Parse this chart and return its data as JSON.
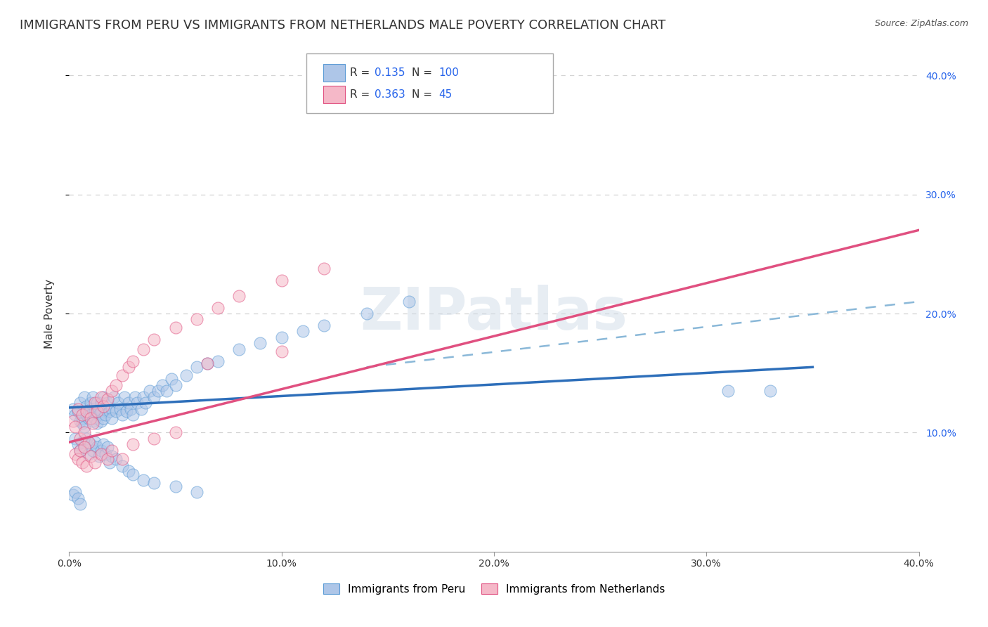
{
  "title": "IMMIGRANTS FROM PERU VS IMMIGRANTS FROM NETHERLANDS MALE POVERTY CORRELATION CHART",
  "source": "Source: ZipAtlas.com",
  "ylabel": "Male Poverty",
  "xlim": [
    0.0,
    0.4
  ],
  "ylim": [
    0.0,
    0.4
  ],
  "xtick_labels": [
    "0.0%",
    "10.0%",
    "20.0%",
    "30.0%",
    "40.0%"
  ],
  "xtick_vals": [
    0.0,
    0.1,
    0.2,
    0.3,
    0.4
  ],
  "ytick_labels_right": [
    "10.0%",
    "20.0%",
    "30.0%",
    "40.0%"
  ],
  "ytick_vals_right": [
    0.1,
    0.2,
    0.3,
    0.4
  ],
  "peru": {
    "name": "Immigrants from Peru",
    "color_fill": "#aec6e8",
    "color_edge": "#5b9bd5",
    "R": "0.135",
    "N": "100",
    "x": [
      0.002,
      0.003,
      0.004,
      0.005,
      0.005,
      0.006,
      0.006,
      0.007,
      0.007,
      0.008,
      0.008,
      0.009,
      0.009,
      0.01,
      0.01,
      0.01,
      0.011,
      0.011,
      0.012,
      0.012,
      0.013,
      0.013,
      0.014,
      0.014,
      0.015,
      0.015,
      0.015,
      0.016,
      0.016,
      0.017,
      0.017,
      0.018,
      0.019,
      0.02,
      0.02,
      0.021,
      0.022,
      0.023,
      0.024,
      0.025,
      0.026,
      0.027,
      0.028,
      0.029,
      0.03,
      0.031,
      0.032,
      0.034,
      0.035,
      0.036,
      0.038,
      0.04,
      0.042,
      0.044,
      0.046,
      0.048,
      0.05,
      0.055,
      0.06,
      0.065,
      0.07,
      0.08,
      0.09,
      0.1,
      0.11,
      0.12,
      0.14,
      0.16,
      0.003,
      0.004,
      0.005,
      0.006,
      0.007,
      0.008,
      0.009,
      0.01,
      0.011,
      0.012,
      0.013,
      0.014,
      0.015,
      0.016,
      0.017,
      0.018,
      0.019,
      0.02,
      0.022,
      0.025,
      0.028,
      0.03,
      0.035,
      0.04,
      0.05,
      0.06,
      0.002,
      0.003,
      0.004,
      0.005,
      0.33,
      0.31
    ],
    "y": [
      0.12,
      0.115,
      0.118,
      0.11,
      0.125,
      0.112,
      0.108,
      0.13,
      0.105,
      0.122,
      0.115,
      0.118,
      0.112,
      0.12,
      0.115,
      0.125,
      0.11,
      0.13,
      0.118,
      0.112,
      0.125,
      0.108,
      0.12,
      0.115,
      0.125,
      0.118,
      0.11,
      0.13,
      0.112,
      0.12,
      0.115,
      0.125,
      0.118,
      0.12,
      0.112,
      0.13,
      0.118,
      0.125,
      0.12,
      0.115,
      0.13,
      0.118,
      0.125,
      0.12,
      0.115,
      0.13,
      0.125,
      0.12,
      0.13,
      0.125,
      0.135,
      0.13,
      0.135,
      0.14,
      0.135,
      0.145,
      0.14,
      0.148,
      0.155,
      0.158,
      0.16,
      0.17,
      0.175,
      0.18,
      0.185,
      0.19,
      0.2,
      0.21,
      0.095,
      0.09,
      0.085,
      0.092,
      0.088,
      0.095,
      0.082,
      0.09,
      0.085,
      0.092,
      0.088,
      0.08,
      0.085,
      0.09,
      0.082,
      0.088,
      0.075,
      0.08,
      0.078,
      0.072,
      0.068,
      0.065,
      0.06,
      0.058,
      0.055,
      0.05,
      0.048,
      0.05,
      0.045,
      0.04,
      0.135,
      0.135
    ],
    "trend_x": [
      0.0,
      0.35
    ],
    "trend_y": [
      0.121,
      0.155
    ],
    "trend_color": "#2e6fba",
    "trend_style": "solid",
    "trend_lw": 2.5
  },
  "netherlands": {
    "name": "Immigrants from Netherlands",
    "color_fill": "#f5b8c8",
    "color_edge": "#e05080",
    "R": "0.363",
    "N": "45",
    "x": [
      0.002,
      0.003,
      0.004,
      0.005,
      0.006,
      0.007,
      0.008,
      0.009,
      0.01,
      0.011,
      0.012,
      0.013,
      0.015,
      0.016,
      0.018,
      0.02,
      0.022,
      0.025,
      0.028,
      0.03,
      0.035,
      0.04,
      0.05,
      0.06,
      0.07,
      0.08,
      0.1,
      0.12,
      0.003,
      0.004,
      0.005,
      0.006,
      0.007,
      0.008,
      0.01,
      0.012,
      0.015,
      0.018,
      0.02,
      0.025,
      0.03,
      0.04,
      0.05,
      0.1,
      0.065
    ],
    "y": [
      0.11,
      0.105,
      0.12,
      0.095,
      0.115,
      0.1,
      0.118,
      0.092,
      0.112,
      0.108,
      0.125,
      0.118,
      0.13,
      0.122,
      0.128,
      0.135,
      0.14,
      0.148,
      0.155,
      0.16,
      0.17,
      0.178,
      0.188,
      0.195,
      0.205,
      0.215,
      0.228,
      0.238,
      0.082,
      0.078,
      0.085,
      0.075,
      0.088,
      0.072,
      0.08,
      0.075,
      0.082,
      0.078,
      0.085,
      0.078,
      0.09,
      0.095,
      0.1,
      0.168,
      0.158
    ],
    "trend_x": [
      0.0,
      0.4
    ],
    "trend_y": [
      0.092,
      0.27
    ],
    "trend_color": "#e05080",
    "trend_style": "solid",
    "trend_lw": 2.5,
    "dashed_trend_x": [
      0.14,
      0.4
    ],
    "dashed_trend_y": [
      0.155,
      0.21
    ],
    "dashed_color": "#8ab8d8"
  },
  "watermark": "ZIPatlas",
  "background_color": "#ffffff",
  "grid_color": "#c8c8c8",
  "title_fontsize": 13,
  "label_fontsize": 11,
  "tick_fontsize": 10,
  "source_fontsize": 9,
  "legend_R_color": "#333333",
  "legend_N_color": "#2563eb"
}
